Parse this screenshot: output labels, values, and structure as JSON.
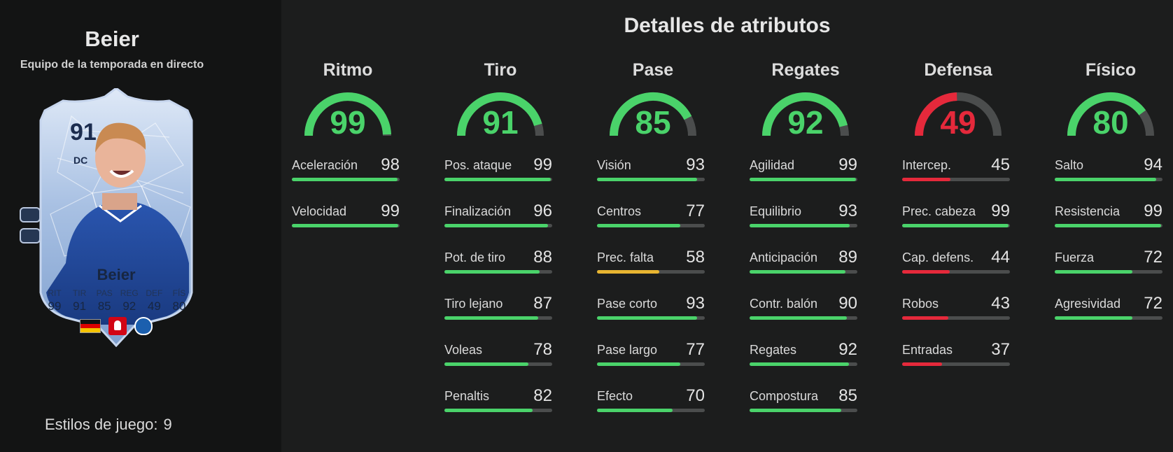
{
  "player": {
    "name": "Beier",
    "subtitle": "Equipo de la temporada en directo",
    "playstyles_label": "Estilos de juego:",
    "playstyles_count": "9"
  },
  "card": {
    "rating": "91",
    "position": "DC",
    "name": "Beier",
    "stats": [
      {
        "label": "RIT",
        "value": "99"
      },
      {
        "label": "TIR",
        "value": "91"
      },
      {
        "label": "PAS",
        "value": "85"
      },
      {
        "label": "REG",
        "value": "92"
      },
      {
        "label": "DEF",
        "value": "49"
      },
      {
        "label": "FÍS",
        "value": "80"
      }
    ],
    "flags": [
      "germany-flag-icon",
      "bundesliga-logo-icon",
      "hoffenheim-badge-icon"
    ]
  },
  "section_title": "Detalles de atributos",
  "colors": {
    "green": "#4ad36a",
    "yellow": "#e8b531",
    "red": "#e5293b",
    "track": "#4b4d4d"
  },
  "categories": [
    {
      "title": "Ritmo",
      "value": "99",
      "attributes": [
        {
          "name": "Aceleración",
          "value": "98"
        },
        {
          "name": "Velocidad",
          "value": "99"
        }
      ]
    },
    {
      "title": "Tiro",
      "value": "91",
      "attributes": [
        {
          "name": "Pos. ataque",
          "value": "99"
        },
        {
          "name": "Finalización",
          "value": "96"
        },
        {
          "name": "Pot. de tiro",
          "value": "88"
        },
        {
          "name": "Tiro lejano",
          "value": "87"
        },
        {
          "name": "Voleas",
          "value": "78"
        },
        {
          "name": "Penaltis",
          "value": "82"
        }
      ]
    },
    {
      "title": "Pase",
      "value": "85",
      "attributes": [
        {
          "name": "Visión",
          "value": "93"
        },
        {
          "name": "Centros",
          "value": "77"
        },
        {
          "name": "Prec. falta",
          "value": "58"
        },
        {
          "name": "Pase corto",
          "value": "93"
        },
        {
          "name": "Pase largo",
          "value": "77"
        },
        {
          "name": "Efecto",
          "value": "70"
        }
      ]
    },
    {
      "title": "Regates",
      "value": "92",
      "attributes": [
        {
          "name": "Agilidad",
          "value": "99"
        },
        {
          "name": "Equilibrio",
          "value": "93"
        },
        {
          "name": "Anticipación",
          "value": "89"
        },
        {
          "name": "Contr. balón",
          "value": "90"
        },
        {
          "name": "Regates",
          "value": "92"
        },
        {
          "name": "Compostura",
          "value": "85"
        }
      ]
    },
    {
      "title": "Defensa",
      "value": "49",
      "attributes": [
        {
          "name": "Intercep.",
          "value": "45"
        },
        {
          "name": "Prec. cabeza",
          "value": "99"
        },
        {
          "name": "Cap. defens.",
          "value": "44"
        },
        {
          "name": "Robos",
          "value": "43"
        },
        {
          "name": "Entradas",
          "value": "37"
        }
      ]
    },
    {
      "title": "Físico",
      "value": "80",
      "attributes": [
        {
          "name": "Salto",
          "value": "94"
        },
        {
          "name": "Resistencia",
          "value": "99"
        },
        {
          "name": "Fuerza",
          "value": "72"
        },
        {
          "name": "Agresividad",
          "value": "72"
        }
      ]
    }
  ]
}
